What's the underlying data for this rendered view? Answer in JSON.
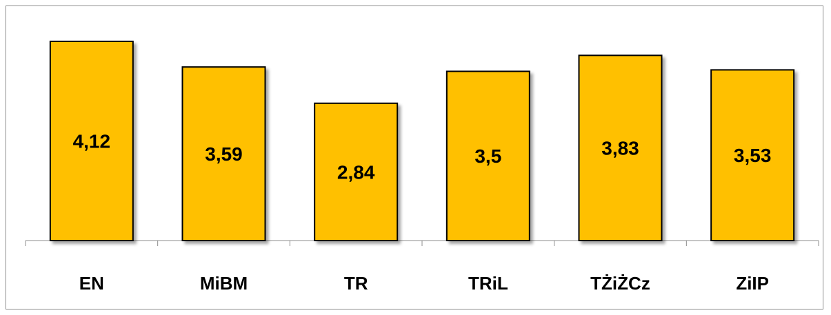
{
  "chart_data": {
    "type": "bar",
    "categories": [
      "EN",
      "MiBM",
      "TR",
      "TRiL",
      "TŻiŻCz",
      "ZiIP"
    ],
    "values": [
      4.12,
      3.59,
      2.84,
      3.5,
      3.83,
      3.53
    ],
    "value_labels": [
      "4,12",
      "3,59",
      "2,84",
      "3,5",
      "3,83",
      "3,53"
    ],
    "title": "",
    "xlabel": "",
    "ylabel": "",
    "ylim": [
      0,
      4.12
    ],
    "grid": false,
    "legend": "none",
    "bar_color": "#FFC000",
    "bar_edge_color": "#000000"
  }
}
